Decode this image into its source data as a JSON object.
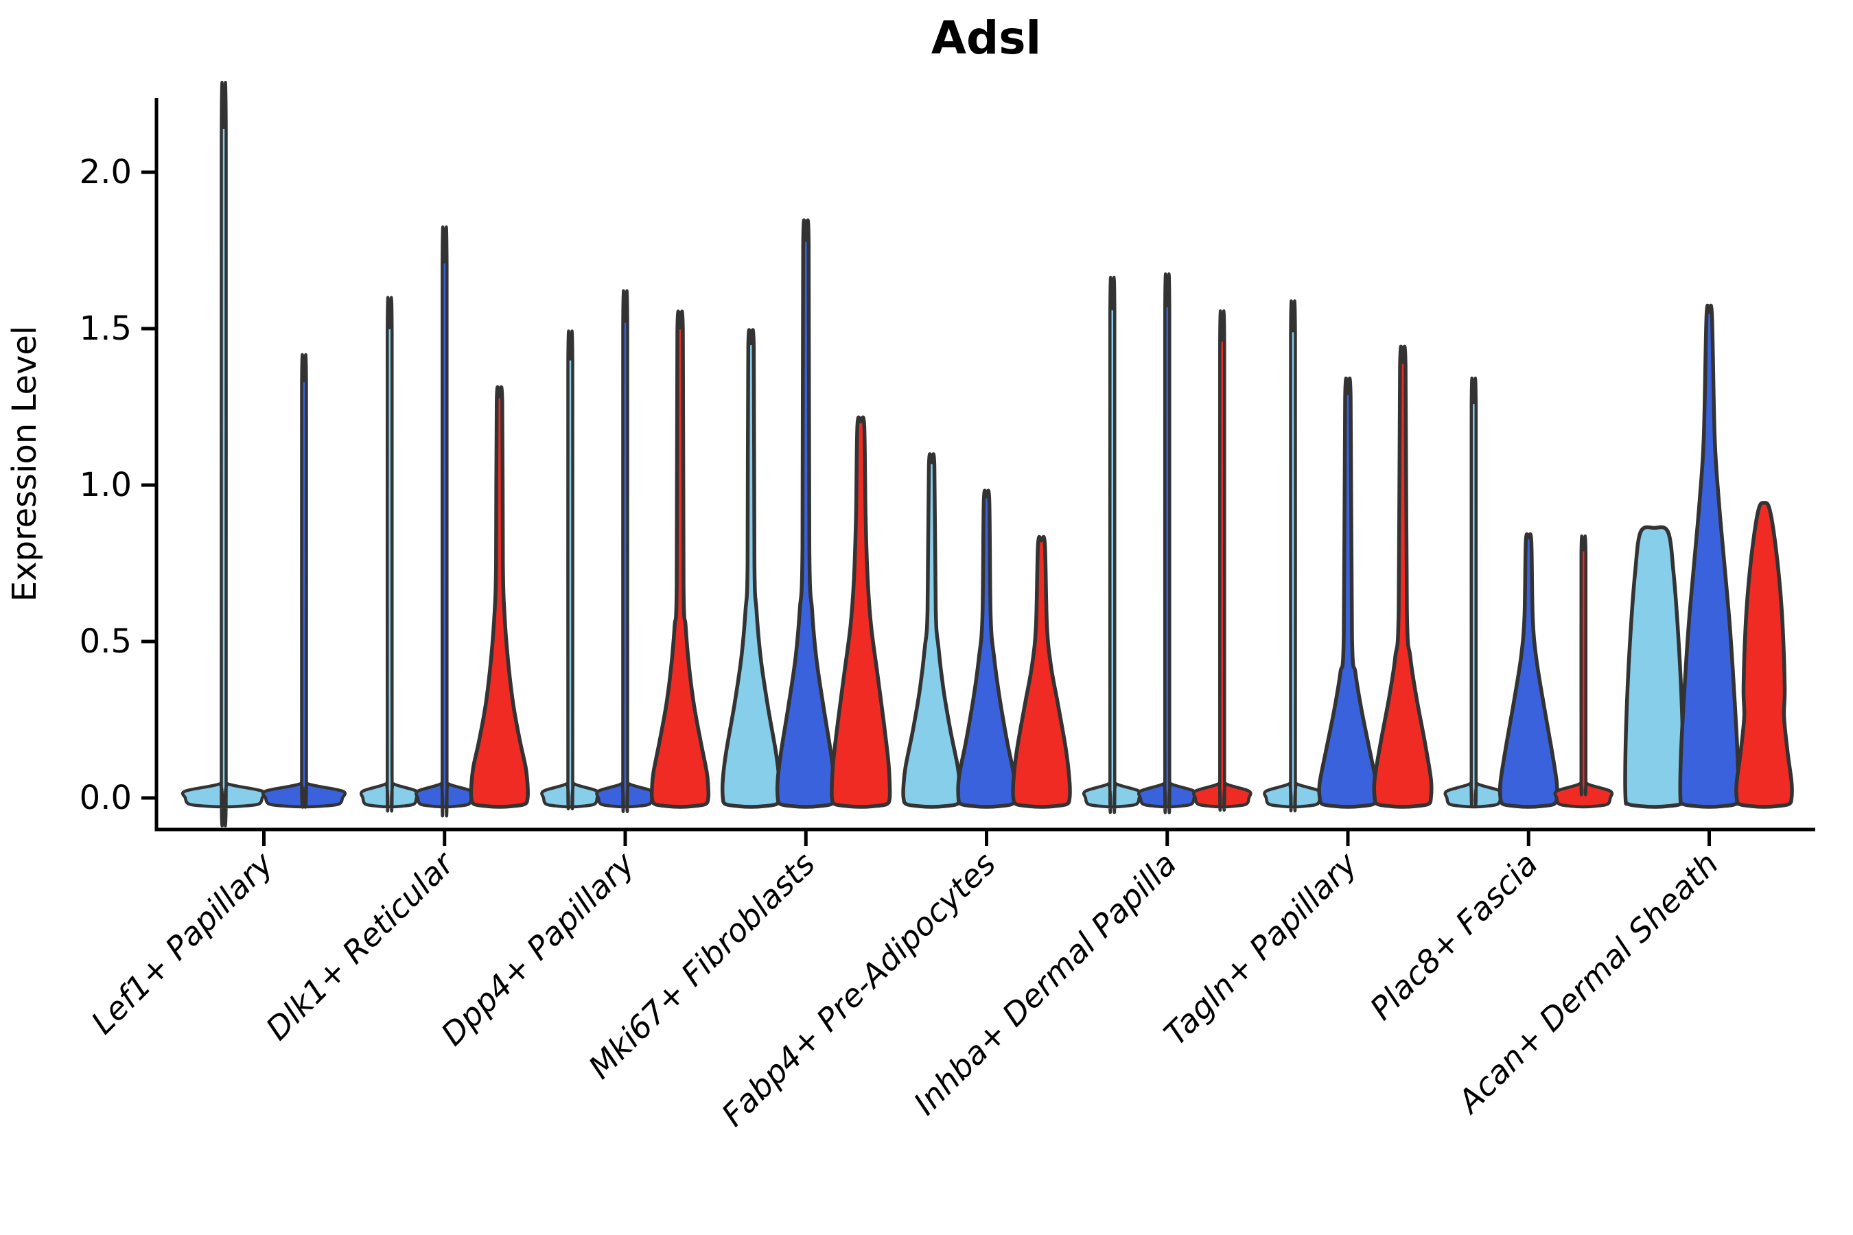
{
  "chart_data": {
    "type": "violin",
    "title": "Adsl",
    "ylabel": "Expression Level",
    "xlabel": "",
    "y_ticks": [
      "0.0",
      "0.5",
      "1.0",
      "1.5",
      "2.0"
    ],
    "y_tick_values": [
      0.0,
      0.5,
      1.0,
      1.5,
      2.0
    ],
    "ylim": [
      -0.1,
      2.25
    ],
    "grid": "off",
    "legend": "none",
    "colors": {
      "sky": "#87CEEB",
      "blue": "#3A62DC",
      "red": "#EF2B24",
      "outline": "#333333",
      "axis": "#000000"
    },
    "categories": [
      "Lef1+ Papillary",
      "Dlk1+ Reticular",
      "Dpp4+ Papillary",
      "Mki67+ Fibroblasts",
      "Fabp4+ Pre-Adipocytes",
      "Inhba+ Dermal Papilla",
      "Tagln+ Papillary",
      "Plac8+ Fascia",
      "Acan+ Dermal Sheath"
    ],
    "groups": [
      {
        "category": "Lef1+ Papillary",
        "slot_halfwidth": 58,
        "violins": [
          {
            "color": "sky",
            "max": 2.13,
            "shape": "line"
          },
          {
            "color": "blue",
            "max": 1.32,
            "shape": "line"
          }
        ]
      },
      {
        "category": "Dlk1+ Reticular",
        "slot_halfwidth": 41,
        "violins": [
          {
            "color": "sky",
            "max": 1.49,
            "shape": "line"
          },
          {
            "color": "blue",
            "max": 1.7,
            "shape": "line"
          },
          {
            "color": "red",
            "max": 1.27,
            "shape": "filled",
            "profile": [
              [
                1.27,
                4
              ],
              [
                0.75,
                5
              ],
              [
                0.6,
                7
              ],
              [
                0.45,
                12
              ],
              [
                0.3,
                20
              ],
              [
                0.18,
                30
              ],
              [
                0.1,
                38
              ],
              [
                0.04,
                41
              ],
              [
                0,
                41
              ]
            ]
          }
        ]
      },
      {
        "category": "Dpp4+ Papillary",
        "slot_halfwidth": 41,
        "violins": [
          {
            "color": "sky",
            "max": 1.39,
            "shape": "line"
          },
          {
            "color": "blue",
            "max": 1.51,
            "shape": "line"
          },
          {
            "color": "red",
            "max": 1.49,
            "shape": "filled",
            "profile": [
              [
                1.49,
                4
              ],
              [
                0.68,
                5
              ],
              [
                0.55,
                8
              ],
              [
                0.42,
                13
              ],
              [
                0.3,
                20
              ],
              [
                0.18,
                30
              ],
              [
                0.08,
                39
              ],
              [
                0.03,
                41
              ],
              [
                0,
                41
              ]
            ]
          }
        ]
      },
      {
        "category": "Mki67+ Fibroblasts",
        "slot_halfwidth": 41,
        "violins": [
          {
            "color": "sky",
            "max": 1.44,
            "shape": "filled",
            "profile": [
              [
                1.44,
                4
              ],
              [
                0.75,
                5
              ],
              [
                0.6,
                8
              ],
              [
                0.45,
                14
              ],
              [
                0.3,
                24
              ],
              [
                0.15,
                36
              ],
              [
                0.06,
                41
              ],
              [
                0,
                41
              ]
            ]
          },
          {
            "color": "blue",
            "max": 1.77,
            "shape": "filled",
            "profile": [
              [
                1.77,
                4
              ],
              [
                0.8,
                5
              ],
              [
                0.6,
                9
              ],
              [
                0.45,
                15
              ],
              [
                0.3,
                25
              ],
              [
                0.15,
                36
              ],
              [
                0.06,
                41
              ],
              [
                0,
                41
              ]
            ]
          },
          {
            "color": "red",
            "max": 1.19,
            "shape": "filled",
            "profile": [
              [
                1.19,
                5
              ],
              [
                0.9,
                7
              ],
              [
                0.7,
                10
              ],
              [
                0.55,
                15
              ],
              [
                0.4,
                24
              ],
              [
                0.25,
                33
              ],
              [
                0.12,
                40
              ],
              [
                0.05,
                42
              ],
              [
                0,
                42
              ]
            ]
          }
        ]
      },
      {
        "category": "Fabp4+ Pre-Adipocytes",
        "slot_halfwidth": 41,
        "violins": [
          {
            "color": "sky",
            "max": 1.06,
            "shape": "filled",
            "profile": [
              [
                1.06,
                4
              ],
              [
                0.6,
                6
              ],
              [
                0.48,
                10
              ],
              [
                0.35,
                17
              ],
              [
                0.22,
                27
              ],
              [
                0.1,
                38
              ],
              [
                0.04,
                41
              ],
              [
                0,
                41
              ]
            ]
          },
          {
            "color": "blue",
            "max": 0.95,
            "shape": "filled",
            "profile": [
              [
                0.95,
                4
              ],
              [
                0.58,
                6
              ],
              [
                0.45,
                11
              ],
              [
                0.32,
                19
              ],
              [
                0.18,
                30
              ],
              [
                0.07,
                40
              ],
              [
                0,
                41
              ]
            ]
          },
          {
            "color": "red",
            "max": 0.81,
            "shape": "filled",
            "profile": [
              [
                0.81,
                5
              ],
              [
                0.55,
                8
              ],
              [
                0.42,
                14
              ],
              [
                0.3,
                24
              ],
              [
                0.15,
                36
              ],
              [
                0.05,
                41
              ],
              [
                0,
                41
              ]
            ]
          }
        ]
      },
      {
        "category": "Inhba+ Dermal Papilla",
        "slot_halfwidth": 41,
        "violins": [
          {
            "color": "sky",
            "max": 1.55,
            "shape": "line"
          },
          {
            "color": "blue",
            "max": 1.56,
            "shape": "line"
          },
          {
            "color": "red",
            "max": 1.45,
            "shape": "line"
          }
        ]
      },
      {
        "category": "Tagln+ Papillary",
        "slot_halfwidth": 41,
        "violins": [
          {
            "color": "sky",
            "max": 1.48,
            "shape": "line"
          },
          {
            "color": "blue",
            "max": 1.28,
            "shape": "filled",
            "profile": [
              [
                1.28,
                4
              ],
              [
                0.52,
                6
              ],
              [
                0.4,
                11
              ],
              [
                0.28,
                20
              ],
              [
                0.15,
                32
              ],
              [
                0.05,
                41
              ],
              [
                0,
                41
              ]
            ]
          },
          {
            "color": "red",
            "max": 1.38,
            "shape": "filled",
            "profile": [
              [
                1.38,
                4
              ],
              [
                0.6,
                6
              ],
              [
                0.45,
                11
              ],
              [
                0.32,
                20
              ],
              [
                0.18,
                32
              ],
              [
                0.06,
                41
              ],
              [
                0,
                41
              ]
            ]
          }
        ]
      },
      {
        "category": "Plac8+ Fascia",
        "slot_halfwidth": 41,
        "violins": [
          {
            "color": "sky",
            "max": 1.25,
            "shape": "line"
          },
          {
            "color": "blue",
            "max": 0.82,
            "shape": "filled",
            "profile": [
              [
                0.82,
                4
              ],
              [
                0.58,
                6
              ],
              [
                0.45,
                11
              ],
              [
                0.3,
                22
              ],
              [
                0.15,
                34
              ],
              [
                0.05,
                41
              ],
              [
                0,
                41
              ]
            ]
          },
          {
            "color": "red",
            "max": 0.78,
            "shape": "line"
          }
        ]
      },
      {
        "category": "Acan+ Dermal Sheath",
        "slot_halfwidth": 41,
        "violins": [
          {
            "color": "sky",
            "max": 0.85,
            "shape": "filled",
            "profile": [
              [
                0.85,
                20
              ],
              [
                0.72,
                28
              ],
              [
                0.55,
                34
              ],
              [
                0.35,
                39
              ],
              [
                0.15,
                42
              ],
              [
                0,
                42
              ]
            ]
          },
          {
            "color": "blue",
            "max": 1.54,
            "shape": "filled",
            "profile": [
              [
                1.54,
                4
              ],
              [
                1.15,
                8
              ],
              [
                0.95,
                14
              ],
              [
                0.75,
                22
              ],
              [
                0.55,
                30
              ],
              [
                0.35,
                36
              ],
              [
                0.15,
                41
              ],
              [
                0,
                42
              ]
            ]
          },
          {
            "color": "red",
            "max": 0.93,
            "shape": "filled",
            "profile": [
              [
                0.93,
                7
              ],
              [
                0.85,
                14
              ],
              [
                0.7,
                22
              ],
              [
                0.55,
                27
              ],
              [
                0.35,
                30
              ],
              [
                0.26,
                29
              ],
              [
                0.15,
                34
              ],
              [
                0.05,
                40
              ],
              [
                0,
                40
              ]
            ]
          }
        ]
      }
    ]
  }
}
